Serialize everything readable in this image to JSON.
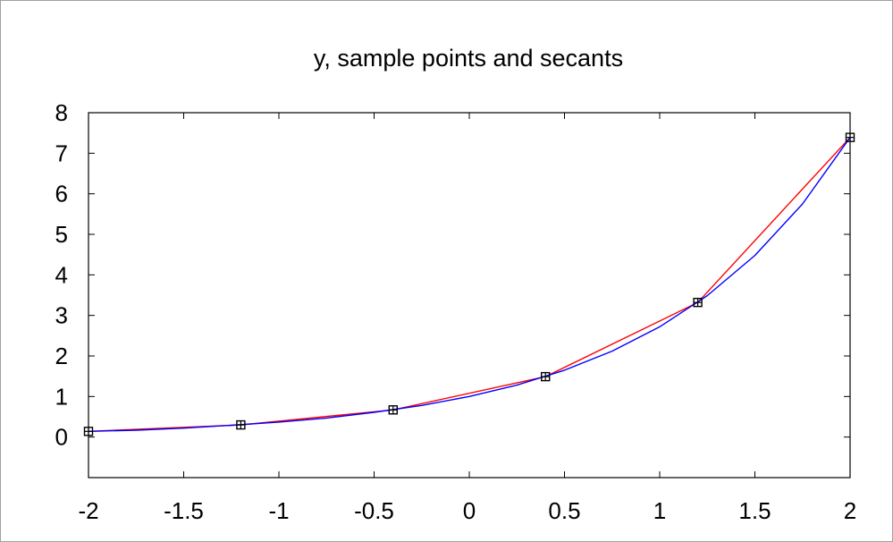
{
  "chart_data": {
    "type": "line",
    "title": "y, sample points and secants",
    "xlabel": "",
    "ylabel": "",
    "xlim": [
      -2,
      2
    ],
    "ylim": [
      -1,
      8
    ],
    "xticks": [
      -2,
      -1.5,
      -1,
      -0.5,
      0,
      0.5,
      1,
      1.5,
      2
    ],
    "xtick_labels": [
      "-2",
      "-1.5",
      "-1",
      "-0.5",
      "0",
      "0.5",
      "1",
      "1.5",
      "2"
    ],
    "yticks": [
      0,
      1,
      2,
      3,
      4,
      5,
      6,
      7,
      8
    ],
    "ytick_labels": [
      "0",
      "1",
      "2",
      "3",
      "4",
      "5",
      "6",
      "7",
      "8"
    ],
    "grid": false,
    "legend": "none",
    "colors": {
      "curve": "#0000ff",
      "secant": "#ff0000",
      "markers": "#000000"
    },
    "series": [
      {
        "kind": "curve",
        "x": [
          -2,
          -1.75,
          -1.5,
          -1.25,
          -1,
          -0.75,
          -0.5,
          -0.25,
          0,
          0.25,
          0.5,
          0.75,
          1,
          1.25,
          1.5,
          1.75,
          2
        ],
        "y": [
          0.14,
          0.17,
          0.22,
          0.29,
          0.37,
          0.47,
          0.61,
          0.78,
          1.0,
          1.28,
          1.65,
          2.12,
          2.72,
          3.49,
          4.48,
          5.75,
          7.39
        ]
      },
      {
        "kind": "secant",
        "marker": "square-plus",
        "x": [
          -2,
          -1.2,
          -0.4,
          0.4,
          1.2,
          2
        ],
        "y": [
          0.14,
          0.3,
          0.67,
          1.49,
          3.32,
          7.39
        ]
      }
    ]
  }
}
